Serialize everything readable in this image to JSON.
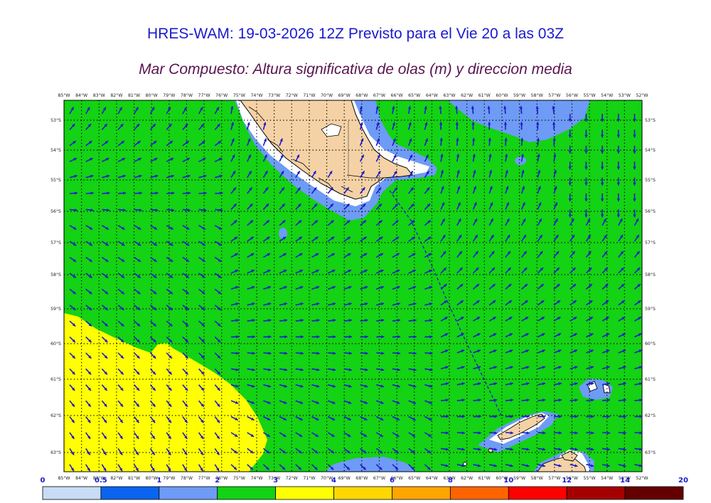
{
  "title": "HRES-WAM: 19-03-2026 12Z Previsto para el Vie 20 a las 03Z",
  "subtitle": "Mar Compuesto: Altura significativa de olas (m) y direccion media",
  "lon_labels": [
    "85°W",
    "84°W",
    "83°W",
    "82°W",
    "81°W",
    "80°W",
    "79°W",
    "78°W",
    "77°W",
    "76°W",
    "75°W",
    "74°W",
    "73°W",
    "72°W",
    "71°W",
    "70°W",
    "69°W",
    "68°W",
    "67°W",
    "66°W",
    "65°W",
    "64°W",
    "63°W",
    "62°W",
    "61°W",
    "60°W",
    "59°W",
    "58°W",
    "57°W",
    "56°W",
    "55°W",
    "54°W",
    "53°W",
    "52°W"
  ],
  "lat_labels": [
    "53°S",
    "54°S",
    "55°S",
    "56°S",
    "57°S",
    "58°S",
    "59°S",
    "60°S",
    "61°S",
    "62°S",
    "63°S"
  ],
  "legend": {
    "labels": [
      "0",
      "0.5",
      "1",
      "2",
      "3",
      "4",
      "6",
      "8",
      "10",
      "12",
      "14",
      "20"
    ],
    "colors": [
      "#c8dcf5",
      "#0a64f0",
      "#6e9bf5",
      "#14d214",
      "#ffff00",
      "#ffd700",
      "#ffa500",
      "#ff6400",
      "#ff0000",
      "#a50000",
      "#640000",
      "#3c3c3c"
    ]
  },
  "colors": {
    "land": "#f5d2a5",
    "sea_low": "#6e9bf5",
    "sea_mid": "#14d214",
    "sea_high": "#ffff00",
    "arrow": "#1a1acd"
  }
}
